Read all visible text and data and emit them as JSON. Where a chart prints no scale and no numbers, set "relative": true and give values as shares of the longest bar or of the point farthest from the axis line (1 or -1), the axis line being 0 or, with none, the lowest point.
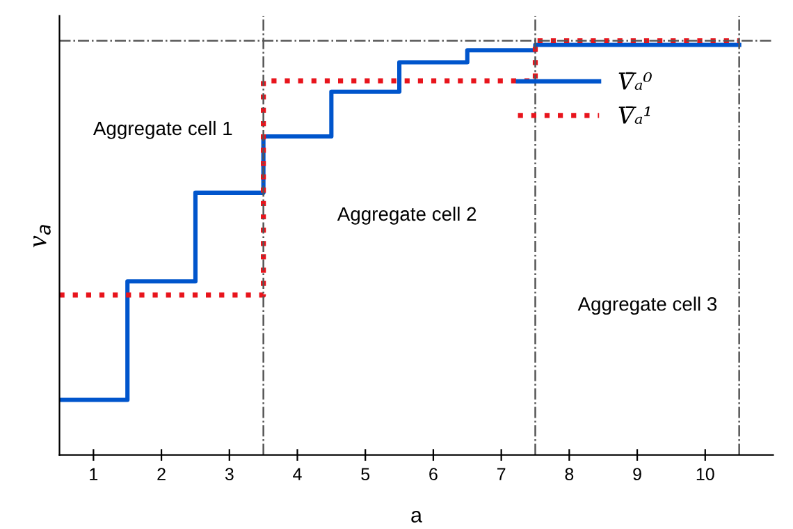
{
  "chart_data": {
    "type": "step",
    "relative": true,
    "xlabel": "a",
    "ylabel": "v$_{a}$",
    "x": [
      0.5,
      1.5,
      2.5,
      3.5,
      4.5,
      5.5,
      6.5,
      7.5,
      10.5
    ],
    "series": [
      {
        "name": "V̄ₐ⁰",
        "color": "#0055cc",
        "line_style": "solid",
        "values": [
          0.133,
          0.419,
          0.633,
          0.769,
          0.877,
          0.948,
          0.977,
          0.99,
          0.99
        ]
      },
      {
        "name": "V̄ₐ¹",
        "color": "#e8141c",
        "line_style": "dotted",
        "values": [
          0.386,
          0.386,
          0.386,
          0.903,
          0.903,
          0.903,
          0.903,
          1.0,
          1.0
        ]
      }
    ],
    "xlim": [
      0.5,
      11
    ],
    "xticks": [
      1,
      2,
      3,
      4,
      5,
      6,
      7,
      8,
      9,
      10
    ],
    "tick_labels": "x",
    "grid": false,
    "legend": "top right",
    "marker": "none",
    "ref_lines": [
      {
        "axis": "x",
        "value": 3.5,
        "color": "#555555"
      },
      {
        "axis": "x",
        "value": 7.5,
        "color": "#555555"
      },
      {
        "axis": "x",
        "value": 10.5,
        "color": "#555555"
      },
      {
        "axis": "y",
        "value": 1.0,
        "color": "#555555"
      }
    ],
    "annotations": [
      "Aggregate cell 1",
      "Aggregate cell 2",
      "Aggregate cell 3"
    ]
  }
}
